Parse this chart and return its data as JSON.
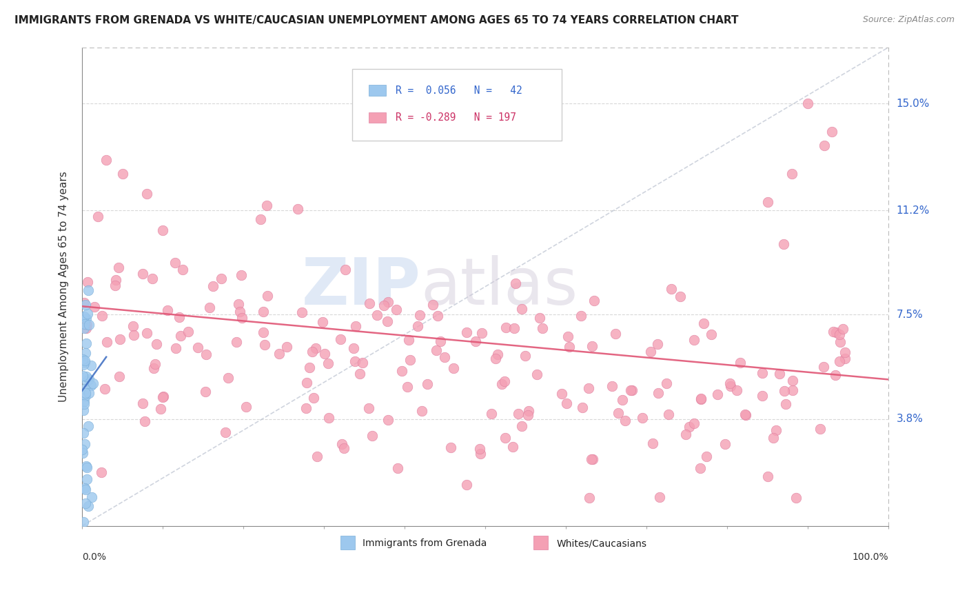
{
  "title": "IMMIGRANTS FROM GRENADA VS WHITE/CAUCASIAN UNEMPLOYMENT AMONG AGES 65 TO 74 YEARS CORRELATION CHART",
  "source": "Source: ZipAtlas.com",
  "ylabel": "Unemployment Among Ages 65 to 74 years",
  "ytick_labels": [
    "3.8%",
    "7.5%",
    "11.2%",
    "15.0%"
  ],
  "ytick_values": [
    3.8,
    7.5,
    11.2,
    15.0
  ],
  "xlim": [
    0,
    100
  ],
  "ylim": [
    0,
    17
  ],
  "legend_r1": "R =  0.056",
  "legend_n1": "N =  42",
  "legend_r2": "R = -0.289",
  "legend_n2": "N = 197",
  "grenada_color": "#9DC8EE",
  "grenada_edge": "#7AAED8",
  "white_color": "#F4A0B4",
  "white_edge": "#E080A0",
  "grenada_r": 0.056,
  "grenada_n": 42,
  "white_r": -0.289,
  "white_n": 197,
  "watermark_zip": "ZIP",
  "watermark_atlas": "atlas",
  "background_color": "#ffffff",
  "grid_color": "#d8d8d8",
  "grenada_trendline_color": "#4472C4",
  "white_trendline_color": "#E05575",
  "gray_trendline_color": "#b0b8c8"
}
